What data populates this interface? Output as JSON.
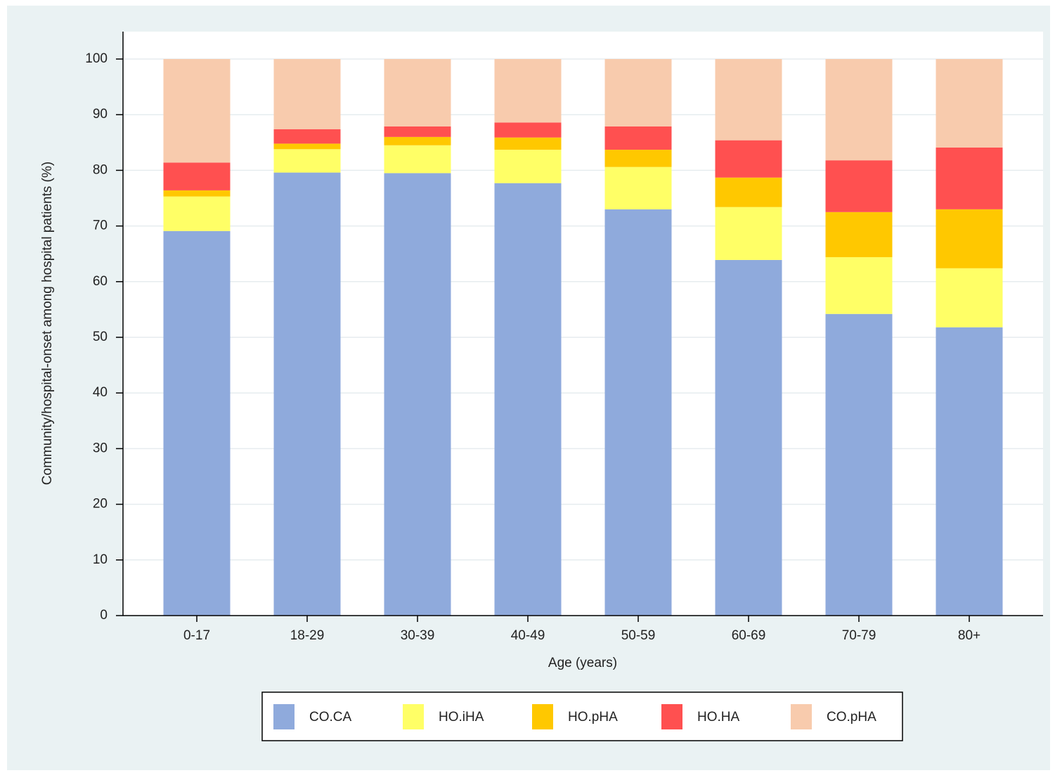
{
  "chart_data": {
    "type": "stacked-bar",
    "x_label": "Age (years)",
    "y_label": "Community/hospital-onset among hospital patients (%)",
    "categories": [
      "0-17",
      "18-29",
      "30-39",
      "40-49",
      "50-59",
      "60-69",
      "70-79",
      "80+"
    ],
    "series": [
      {
        "name": "CO.CA",
        "color": "#8faadc",
        "values": [
          69.1,
          79.6,
          79.5,
          77.7,
          73.0,
          63.9,
          54.2,
          51.8
        ]
      },
      {
        "name": "HO.iHA",
        "color": "#ffff66",
        "values": [
          6.2,
          4.2,
          5.0,
          6.0,
          7.6,
          9.5,
          10.2,
          10.6
        ]
      },
      {
        "name": "HO.pHA",
        "color": "#ffc800",
        "values": [
          1.1,
          1.0,
          1.5,
          2.2,
          3.1,
          5.3,
          8.1,
          10.6
        ]
      },
      {
        "name": "HO.HA",
        "color": "#ff5050",
        "values": [
          5.0,
          2.6,
          1.9,
          2.7,
          4.2,
          6.7,
          9.3,
          11.1
        ]
      },
      {
        "name": "CO.pHA",
        "color": "#f8cbad",
        "values": [
          18.6,
          12.6,
          12.1,
          11.4,
          12.1,
          14.6,
          18.2,
          15.9
        ]
      }
    ],
    "ylim": [
      0,
      100
    ],
    "yticks": [
      0,
      10,
      20,
      30,
      40,
      50,
      60,
      70,
      80,
      90,
      100
    ],
    "grid": true,
    "legend": "bottom"
  }
}
